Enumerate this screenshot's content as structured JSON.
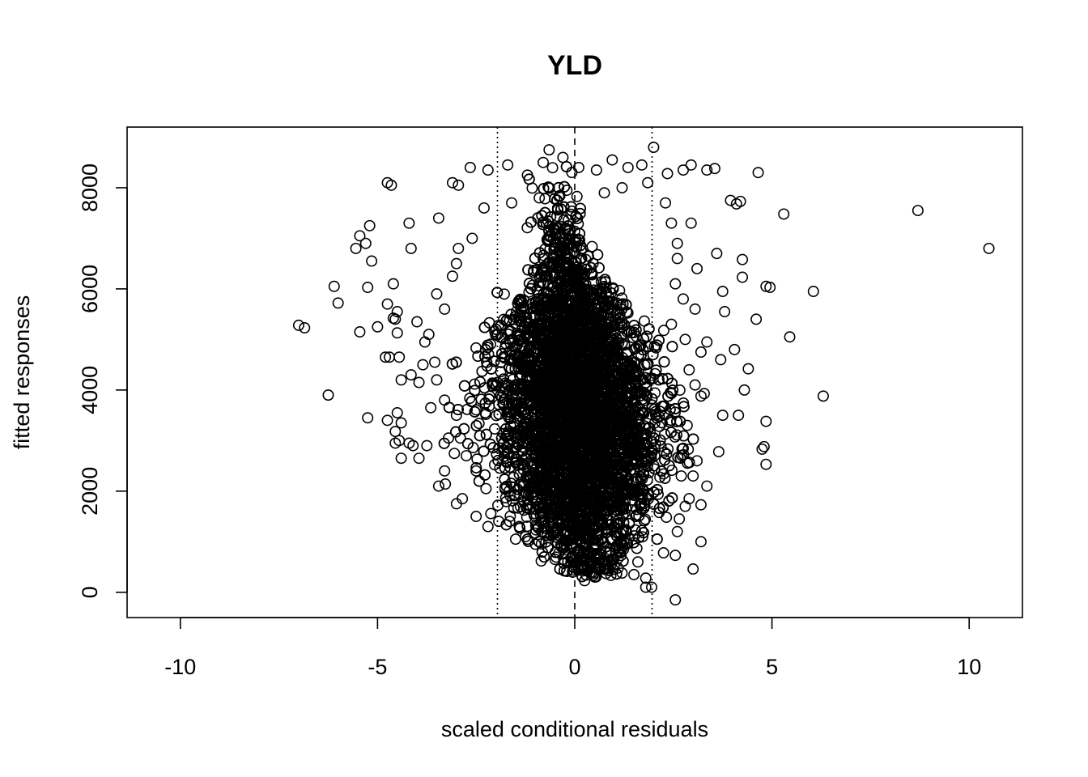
{
  "chart_data": {
    "type": "scatter",
    "title": "YLD",
    "xlabel": "scaled conditional residuals",
    "ylabel": "fitted responses",
    "xlim": [
      -11.35,
      11.35
    ],
    "ylim": [
      -500,
      9200
    ],
    "xticks": [
      -10,
      -5,
      0,
      5,
      10
    ],
    "yticks": [
      0,
      2000,
      4000,
      6000,
      8000
    ],
    "reference_lines": [
      {
        "x": -1.96,
        "style": "dotted"
      },
      {
        "x": 0,
        "style": "dashed"
      },
      {
        "x": 1.96,
        "style": "dotted"
      }
    ],
    "marker": "open-circle",
    "grid": false,
    "series": [
      {
        "points": [
          [
            10.5,
            6800
          ],
          [
            8.7,
            7550
          ],
          [
            6.3,
            3880
          ],
          [
            6.05,
            5950
          ],
          [
            5.45,
            5050
          ],
          [
            5.3,
            7480
          ],
          [
            4.95,
            6030
          ],
          [
            4.85,
            6050
          ],
          [
            4.85,
            3380
          ],
          [
            4.8,
            2880
          ],
          [
            4.75,
            2830
          ],
          [
            4.85,
            2530
          ],
          [
            4.6,
            5400
          ],
          [
            4.65,
            8300
          ],
          [
            4.4,
            4420
          ],
          [
            4.3,
            4000
          ],
          [
            4.25,
            6230
          ],
          [
            4.15,
            3500
          ],
          [
            4.2,
            7730
          ],
          [
            4.1,
            7680
          ],
          [
            4.05,
            4800
          ],
          [
            3.95,
            7750
          ],
          [
            4.25,
            6580
          ],
          [
            3.8,
            5550
          ],
          [
            3.75,
            5950
          ],
          [
            3.7,
            4600
          ],
          [
            3.75,
            3500
          ],
          [
            3.65,
            2780
          ],
          [
            3.6,
            6700
          ],
          [
            3.55,
            8380
          ],
          [
            3.35,
            8350
          ],
          [
            3.35,
            2100
          ],
          [
            3.2,
            3880
          ],
          [
            3.2,
            1000
          ],
          [
            3.0,
            460
          ],
          [
            3.2,
            1730
          ],
          [
            3.2,
            4750
          ],
          [
            3.35,
            4950
          ],
          [
            3.05,
            5600
          ],
          [
            3.1,
            6400
          ],
          [
            2.95,
            7300
          ],
          [
            2.95,
            8450
          ],
          [
            2.75,
            8350
          ],
          [
            2.55,
            730
          ],
          [
            2.55,
            -150
          ],
          [
            2.65,
            1450
          ],
          [
            2.8,
            1700
          ],
          [
            2.7,
            2300
          ],
          [
            2.45,
            5300
          ],
          [
            2.6,
            6900
          ],
          [
            2.35,
            8280
          ],
          [
            2.0,
            8800
          ],
          [
            1.95,
            100
          ],
          [
            1.8,
            100
          ],
          [
            1.8,
            280
          ],
          [
            1.5,
            350
          ],
          [
            1.2,
            380
          ],
          [
            1.0,
            520
          ],
          [
            0.8,
            460
          ],
          [
            0.25,
            230
          ],
          [
            -0.05,
            440
          ],
          [
            -0.5,
            650
          ],
          [
            -0.85,
            620
          ],
          [
            -1.25,
            1100
          ],
          [
            -1.65,
            1400
          ],
          [
            -1.95,
            1720
          ],
          [
            -2.25,
            2050
          ],
          [
            -2.5,
            2400
          ],
          [
            -2.75,
            2700
          ],
          [
            -2.9,
            3050
          ],
          [
            -3.0,
            3500
          ],
          [
            -3.3,
            3800
          ],
          [
            -3.5,
            4200
          ],
          [
            -3.55,
            4550
          ],
          [
            -3.8,
            4950
          ],
          [
            -4.0,
            5350
          ],
          [
            -3.3,
            5600
          ],
          [
            -3.1,
            6250
          ],
          [
            -2.95,
            6800
          ],
          [
            -3.45,
            7400
          ],
          [
            -3.1,
            8100
          ],
          [
            -2.95,
            8050
          ],
          [
            -2.65,
            8400
          ],
          [
            -2.2,
            8350
          ],
          [
            -1.7,
            8450
          ],
          [
            -1.2,
            8250
          ],
          [
            -0.8,
            8500
          ],
          [
            -0.65,
            8750
          ],
          [
            -0.3,
            8600
          ],
          [
            0.1,
            8400
          ],
          [
            0.55,
            8350
          ],
          [
            0.95,
            8550
          ],
          [
            1.35,
            8400
          ],
          [
            1.7,
            8450
          ],
          [
            -4.15,
            6800
          ],
          [
            -4.2,
            7300
          ],
          [
            -4.65,
            8050
          ],
          [
            -4.75,
            8100
          ],
          [
            -5.2,
            7250
          ],
          [
            -5.45,
            7050
          ],
          [
            -5.55,
            6800
          ],
          [
            -5.3,
            6900
          ],
          [
            -5.15,
            6550
          ],
          [
            -5.25,
            6030
          ],
          [
            -4.6,
            6100
          ],
          [
            -4.75,
            5700
          ],
          [
            -4.5,
            5550
          ],
          [
            -4.55,
            5400
          ],
          [
            -4.6,
            5420
          ],
          [
            -5.0,
            5250
          ],
          [
            -5.45,
            5150
          ],
          [
            -4.5,
            5130
          ],
          [
            -6.1,
            6050
          ],
          [
            -6.0,
            5720
          ],
          [
            -7.0,
            5280
          ],
          [
            -6.85,
            5230
          ],
          [
            -6.25,
            3900
          ],
          [
            -4.8,
            4650
          ],
          [
            -4.7,
            4650
          ],
          [
            -4.45,
            4650
          ],
          [
            -4.4,
            4200
          ],
          [
            -4.15,
            4300
          ],
          [
            -3.95,
            4150
          ],
          [
            -5.25,
            3450
          ],
          [
            -4.75,
            3400
          ],
          [
            -4.5,
            3550
          ],
          [
            -4.4,
            3350
          ],
          [
            -4.55,
            3180
          ],
          [
            -4.2,
            2950
          ],
          [
            -4.1,
            2900
          ],
          [
            -4.55,
            2950
          ],
          [
            -4.45,
            3000
          ],
          [
            -4.4,
            2650
          ],
          [
            -3.95,
            2650
          ],
          [
            -3.75,
            2900
          ],
          [
            -3.3,
            2400
          ],
          [
            -3.45,
            2100
          ],
          [
            -3.0,
            1750
          ],
          [
            -2.85,
            1850
          ],
          [
            -2.5,
            1500
          ],
          [
            -2.2,
            1300
          ],
          [
            -1.5,
            1050
          ],
          [
            -1.0,
            950
          ],
          [
            -0.4,
            780
          ],
          [
            0.4,
            700
          ],
          [
            1.1,
            480
          ],
          [
            1.6,
            600
          ],
          [
            2.25,
            780
          ],
          [
            2.6,
            1200
          ],
          [
            2.9,
            1850
          ],
          [
            3.0,
            2300
          ],
          [
            3.1,
            2600
          ],
          [
            2.85,
            3300
          ],
          [
            3.05,
            4100
          ],
          [
            2.9,
            4400
          ],
          [
            2.8,
            5000
          ],
          [
            2.75,
            5800
          ],
          [
            2.55,
            6100
          ],
          [
            2.6,
            6600
          ],
          [
            2.45,
            7300
          ],
          [
            2.3,
            7700
          ],
          [
            1.85,
            8100
          ],
          [
            1.2,
            8000
          ],
          [
            0.75,
            7900
          ],
          [
            -0.2,
            7950
          ],
          [
            -0.9,
            7800
          ],
          [
            -1.6,
            7700
          ],
          [
            -2.3,
            7600
          ],
          [
            -2.6,
            7000
          ],
          [
            -3.0,
            6500
          ],
          [
            -3.5,
            5900
          ],
          [
            -3.7,
            5100
          ],
          [
            -3.85,
            4500
          ],
          [
            -3.65,
            3650
          ],
          [
            -3.2,
            3050
          ]
        ]
      }
    ],
    "dense_core": {
      "note_hidden": true,
      "center": [
        0.05,
        3500
      ],
      "x_spread": 1.05,
      "y_spread": 1650,
      "count": 9000
    }
  }
}
